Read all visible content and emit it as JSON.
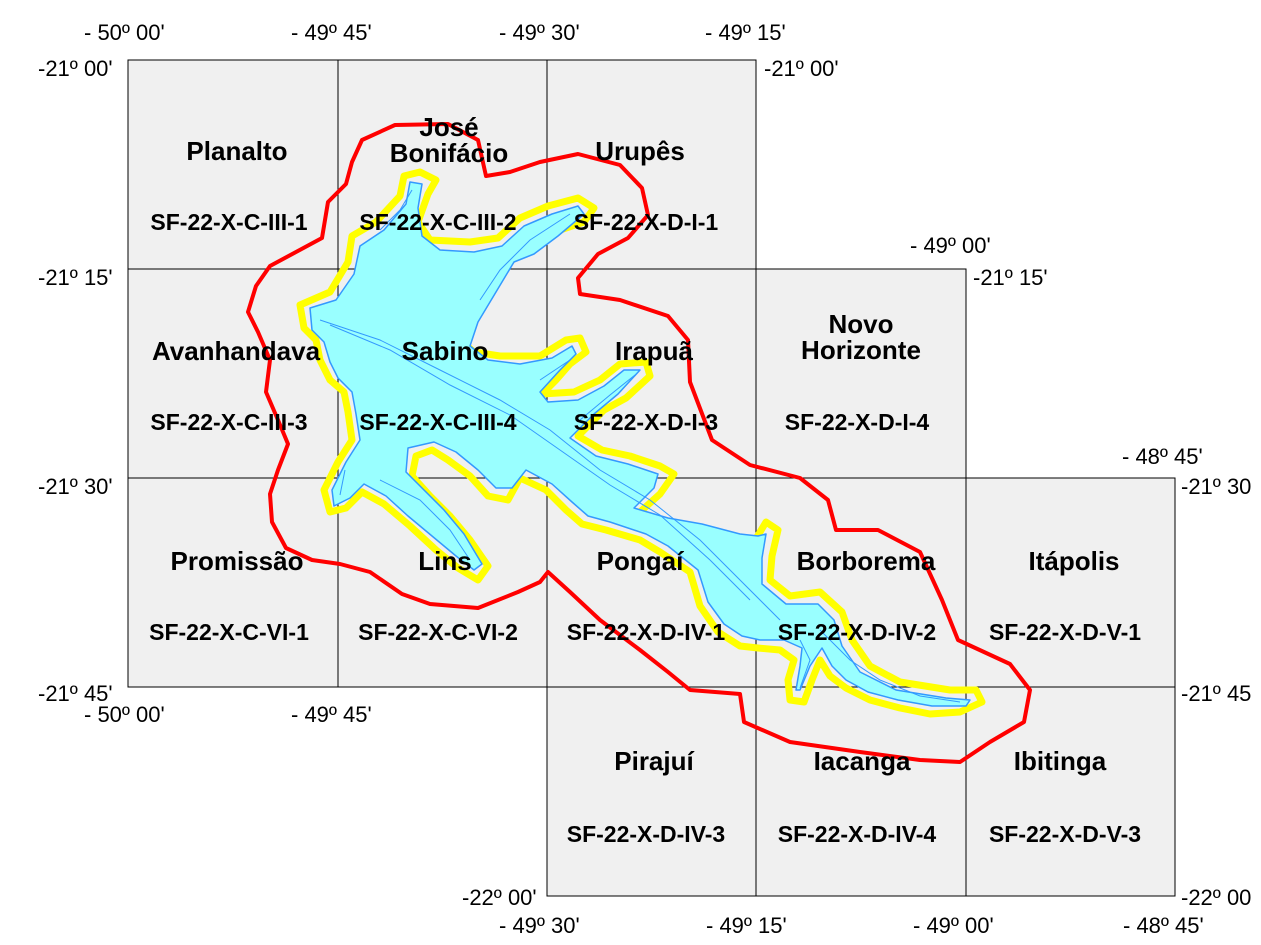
{
  "colors": {
    "sheet_fill": "#f0f0f0",
    "sheet_border": "#000000",
    "buffer_outline": "#ff0000",
    "margin_outline": "#ffff00",
    "reservoir": "#99ffff",
    "reservoir_line": "#3399ff"
  },
  "sheets": [
    {
      "id": "s1",
      "name": [
        "Planalto"
      ],
      "code": "SF-22-X-C-III-1"
    },
    {
      "id": "s2",
      "name": [
        "José",
        "Bonifácio"
      ],
      "code": "SF-22-X-C-III-2"
    },
    {
      "id": "s3",
      "name": [
        "Urupês"
      ],
      "code": "SF-22-X-D-I-1"
    },
    {
      "id": "s4",
      "name": [
        "Avanhandava"
      ],
      "code": "SF-22-X-C-III-3"
    },
    {
      "id": "s5",
      "name": [
        "Sabino"
      ],
      "code": "SF-22-X-C-III-4"
    },
    {
      "id": "s6",
      "name": [
        "Irapuã"
      ],
      "code": "SF-22-X-D-I-3"
    },
    {
      "id": "s7",
      "name": [
        "Novo",
        "Horizonte"
      ],
      "code": "SF-22-X-D-I-4"
    },
    {
      "id": "s8",
      "name": [
        "Promissão"
      ],
      "code": "SF-22-X-C-VI-1"
    },
    {
      "id": "s9",
      "name": [
        "Lins"
      ],
      "code": "SF-22-X-C-VI-2"
    },
    {
      "id": "s10",
      "name": [
        "Pongaí"
      ],
      "code": "SF-22-X-D-IV-1"
    },
    {
      "id": "s11",
      "name": [
        "Borborema"
      ],
      "code": "SF-22-X-D-IV-2"
    },
    {
      "id": "s12",
      "name": [
        "Itápolis"
      ],
      "code": "SF-22-X-D-V-1"
    },
    {
      "id": "s13",
      "name": [
        "Pirajuí"
      ],
      "code": "SF-22-X-D-IV-3"
    },
    {
      "id": "s14",
      "name": [
        "Iacanga"
      ],
      "code": "SF-22-X-D-IV-4"
    },
    {
      "id": "s15",
      "name": [
        "Ibitinga"
      ],
      "code": "SF-22-X-D-V-3"
    }
  ],
  "coords": [
    {
      "id": "c1",
      "text": "- 50º 00'"
    },
    {
      "id": "c2",
      "text": "- 49º 45'"
    },
    {
      "id": "c3",
      "text": "- 49º 30'"
    },
    {
      "id": "c4",
      "text": "- 49º 15'"
    },
    {
      "id": "c5",
      "text": "-21º 00'"
    },
    {
      "id": "c6",
      "text": "-21º 00'"
    },
    {
      "id": "c7",
      "text": "- 49º 00'"
    },
    {
      "id": "c8",
      "text": "-21º 15'"
    },
    {
      "id": "c9",
      "text": "-21º 15'"
    },
    {
      "id": "c10",
      "text": "- 48º 45'"
    },
    {
      "id": "c11",
      "text": "-21º 30'"
    },
    {
      "id": "c12",
      "text": "-21º 30"
    },
    {
      "id": "c13",
      "text": "-21º 45'"
    },
    {
      "id": "c14",
      "text": "-21º 45"
    },
    {
      "id": "c15",
      "text": "- 50º 00'"
    },
    {
      "id": "c16",
      "text": "- 49º 45'"
    },
    {
      "id": "c17",
      "text": "-22º 00'"
    },
    {
      "id": "c18",
      "text": "-22º 00"
    },
    {
      "id": "c19",
      "text": "- 49º 30'"
    },
    {
      "id": "c20",
      "text": "- 49º 15'"
    },
    {
      "id": "c21",
      "text": "- 49º 00'"
    },
    {
      "id": "c22",
      "text": "- 48º 45'"
    }
  ]
}
